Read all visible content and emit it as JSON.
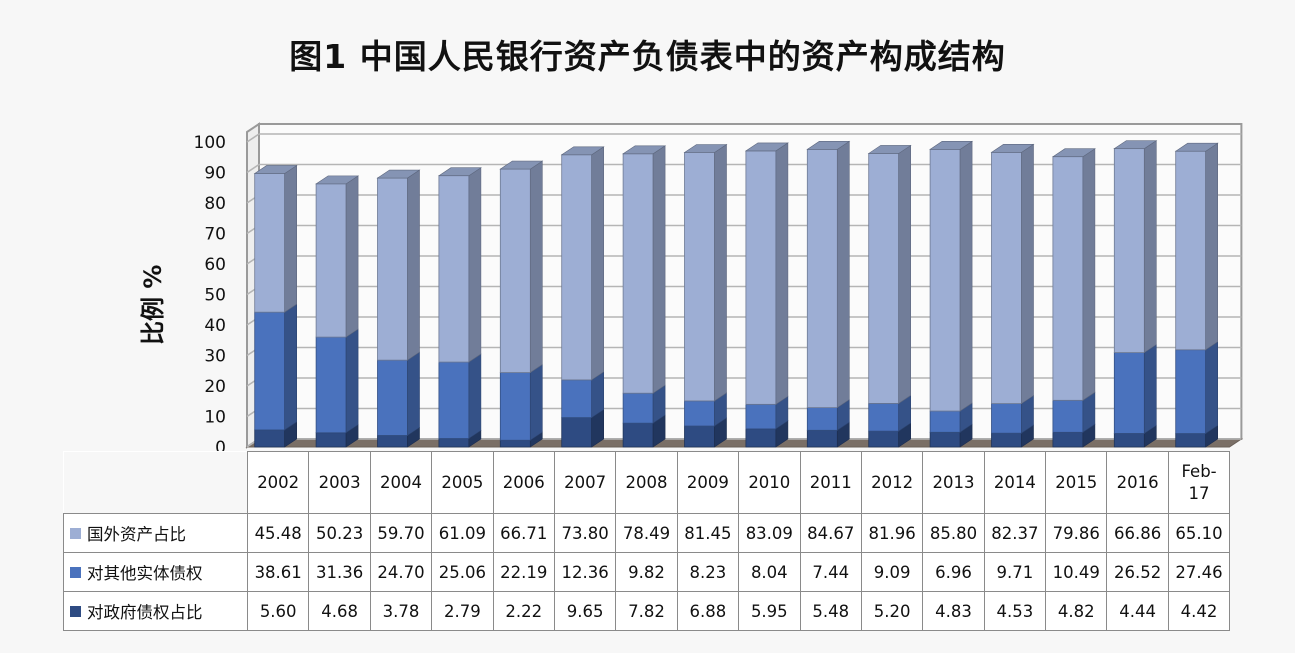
{
  "chart_data": {
    "type": "bar",
    "stacked": true,
    "title": "图1  中国人民银行资产负债表中的资产构成结构",
    "ylabel": "比例 %",
    "ylim": [
      0,
      100
    ],
    "yticks": [
      "0",
      "10",
      "20",
      "30",
      "40",
      "50",
      "60",
      "70",
      "80",
      "90",
      "100"
    ],
    "grid": true,
    "legend_placement": "bottom (data table)",
    "categories": [
      "2002",
      "2003",
      "2004",
      "2005",
      "2006",
      "2007",
      "2008",
      "2009",
      "2010",
      "2011",
      "2012",
      "2013",
      "2014",
      "2015",
      "2016",
      "Feb-17"
    ],
    "series": [
      {
        "name": "对政府债权占比",
        "color": "#2e4b82",
        "values": [
          5.6,
          4.68,
          3.78,
          2.79,
          2.22,
          9.65,
          7.82,
          6.88,
          5.95,
          5.48,
          5.2,
          4.83,
          4.53,
          4.82,
          4.44,
          4.42
        ],
        "labels": [
          "5.60",
          "4.68",
          "3.78",
          "2.79",
          "2.22",
          "9.65",
          "7.82",
          "6.88",
          "5.95",
          "5.48",
          "5.20",
          "4.83",
          "4.53",
          "4.82",
          "4.44",
          "4.42"
        ]
      },
      {
        "name": "对其他实体债权",
        "color": "#4a72bd",
        "values": [
          38.61,
          31.36,
          24.7,
          25.06,
          22.19,
          12.36,
          9.82,
          8.23,
          8.04,
          7.44,
          9.09,
          6.96,
          9.71,
          10.49,
          26.52,
          27.46
        ],
        "labels": [
          "38.61",
          "31.36",
          "24.70",
          "25.06",
          "22.19",
          "12.36",
          "9.82",
          "8.23",
          "8.04",
          "7.44",
          "9.09",
          "6.96",
          "9.71",
          "10.49",
          "26.52",
          "27.46"
        ]
      },
      {
        "name": "国外资产占比",
        "color": "#9daed4",
        "values": [
          45.48,
          50.23,
          59.7,
          61.09,
          66.71,
          73.8,
          78.49,
          81.45,
          83.09,
          84.67,
          81.96,
          85.8,
          82.37,
          79.86,
          66.86,
          65.1
        ],
        "labels": [
          "45.48",
          "50.23",
          "59.70",
          "61.09",
          "66.71",
          "73.80",
          "78.49",
          "81.45",
          "83.09",
          "84.67",
          "81.96",
          "85.80",
          "82.37",
          "79.86",
          "66.86",
          "65.10"
        ]
      }
    ],
    "table_row_order": [
      "国外资产占比",
      "对其他实体债权",
      "对政府债权占比"
    ]
  }
}
